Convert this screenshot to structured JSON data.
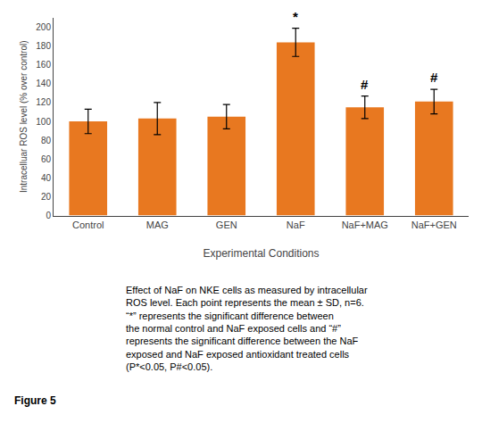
{
  "chart_data": {
    "type": "bar",
    "categories": [
      "Control",
      "MAG",
      "GEN",
      "NaF",
      "NaF+MAG",
      "NaF+GEN"
    ],
    "values": [
      100,
      103,
      105,
      184,
      115,
      121
    ],
    "errors": [
      13,
      17,
      13,
      15,
      12,
      13
    ],
    "color": "#E87820",
    "ylabel": "Intracelluar ROS level (% over control)",
    "xlabel": "Experimental Conditions",
    "ylim": [
      0,
      210
    ],
    "yticks": [
      0,
      20,
      40,
      60,
      80,
      100,
      120,
      140,
      160,
      180,
      200
    ],
    "annotations": {
      "NaF": "*",
      "NaF+MAG": "#",
      "NaF+GEN": "#"
    },
    "figure_label": "Figure 5",
    "caption": [
      "Effect of NaF on NKE cells as measured by intracellular",
      "ROS level. Each point represents the mean ± SD, n=6.",
      "“*” represents the significant difference between",
      "the normal control and NaF exposed cells and “#”",
      "represents the significant difference between the NaF",
      "exposed and NaF exposed antioxidant treated cells",
      "(P*<0.05, P#<0.05)."
    ],
    "grid": false
  }
}
